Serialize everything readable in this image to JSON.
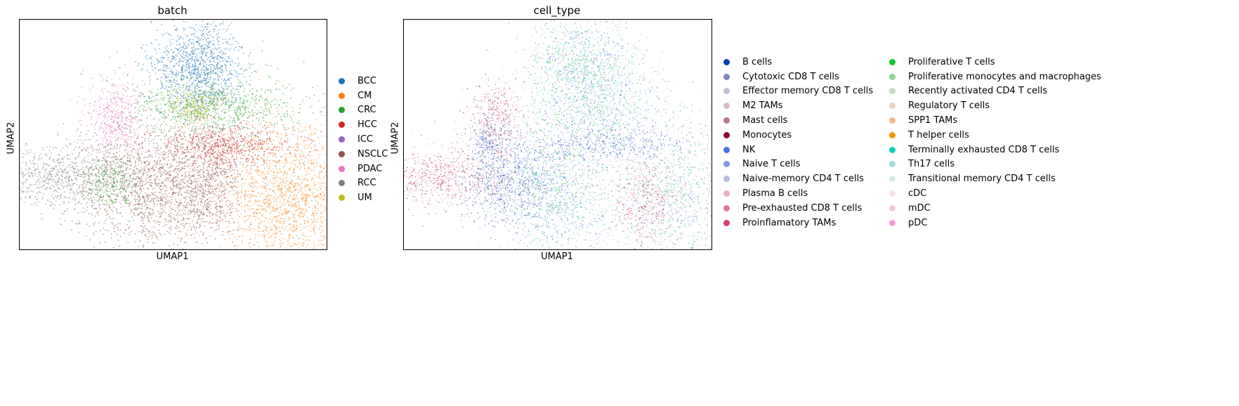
{
  "charts": [
    {
      "id": "batch",
      "title": "batch",
      "xlabel": "UMAP1",
      "ylabel": "UMAP2",
      "legend": [
        {
          "label": "BCC",
          "color": "#1f77b4"
        },
        {
          "label": "CM",
          "color": "#ff7f0e"
        },
        {
          "label": "CRC",
          "color": "#2ca02c"
        },
        {
          "label": "HCC",
          "color": "#d62728"
        },
        {
          "label": "ICC",
          "color": "#9467bd"
        },
        {
          "label": "NSCLC",
          "color": "#8c564b"
        },
        {
          "label": "PDAC",
          "color": "#e377c2"
        },
        {
          "label": "RCC",
          "color": "#7f7f7f"
        },
        {
          "label": "UM",
          "color": "#bcbd22"
        }
      ]
    },
    {
      "id": "cell_type",
      "title": "cell_type",
      "xlabel": "UMAP1",
      "ylabel": "UMAP2",
      "legend": [
        {
          "label": "B cells",
          "color": "#023fa5"
        },
        {
          "label": "Cytotoxic CD8 T cells",
          "color": "#7d87b9"
        },
        {
          "label": "Effector memory CD8 T cells",
          "color": "#bec1d4"
        },
        {
          "label": "M2 TAMs",
          "color": "#d6bcc0"
        },
        {
          "label": "Mast cells",
          "color": "#bb7784"
        },
        {
          "label": "Monocytes",
          "color": "#8e063b"
        },
        {
          "label": "NK",
          "color": "#4a6fe3"
        },
        {
          "label": "Naive T cells",
          "color": "#8595e1"
        },
        {
          "label": "Naive-memory CD4 T cells",
          "color": "#b5bbe3"
        },
        {
          "label": "Plasma B cells",
          "color": "#e6afb9"
        },
        {
          "label": "Pre-exhausted CD8 T cells",
          "color": "#e07b91"
        },
        {
          "label": "Proinflamatory TAMs",
          "color": "#d33f6a"
        },
        {
          "label": "Proliferative T cells",
          "color": "#11c638"
        },
        {
          "label": "Proliferative monocytes and macrophages",
          "color": "#8dd593"
        },
        {
          "label": "Recently activated CD4 T cells",
          "color": "#c6dec7"
        },
        {
          "label": "Regulatory T cells",
          "color": "#ead3c6"
        },
        {
          "label": "SPP1 TAMs",
          "color": "#f0b98d"
        },
        {
          "label": "T helper cells",
          "color": "#ef9708"
        },
        {
          "label": "Terminally exhausted CD8 T cells",
          "color": "#0fcfc0"
        },
        {
          "label": "Th17 cells",
          "color": "#9cded6"
        },
        {
          "label": "Transitional memory CD4 T cells",
          "color": "#d5eae7"
        },
        {
          "label": "cDC",
          "color": "#f3e1eb"
        },
        {
          "label": "mDC",
          "color": "#f6c4e1"
        },
        {
          "label": "pDC",
          "color": "#f79cd4"
        }
      ]
    }
  ]
}
